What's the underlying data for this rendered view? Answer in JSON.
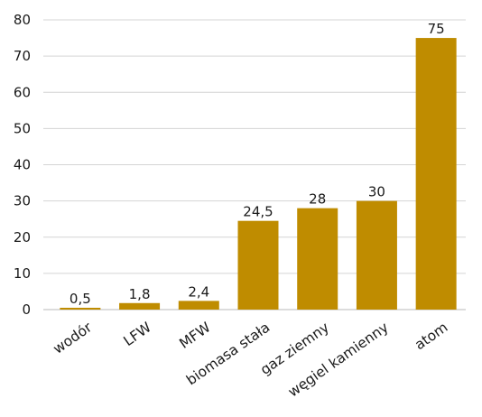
{
  "chart_data": {
    "type": "bar",
    "title": "",
    "xlabel": "",
    "ylabel": "",
    "categories": [
      "wodór",
      "LFW",
      "MFW",
      "biomasa stała",
      "gaz ziemny",
      "węgiel kamienny",
      "atom"
    ],
    "values": [
      0.5,
      1.8,
      2.4,
      24.5,
      28,
      30,
      75
    ],
    "data_labels": [
      "0,5",
      "1,8",
      "2,4",
      "24,5",
      "28",
      "30",
      "75"
    ],
    "ylim": [
      0,
      80
    ],
    "yticks": [
      0,
      10,
      20,
      30,
      40,
      50,
      60,
      70,
      80
    ],
    "ytick_labels": [
      "0",
      "10",
      "20",
      "30",
      "40",
      "50",
      "60",
      "70",
      "80"
    ],
    "grid": true,
    "bar_color": "#bf8c00",
    "category_label_rotation": "diagonal"
  }
}
